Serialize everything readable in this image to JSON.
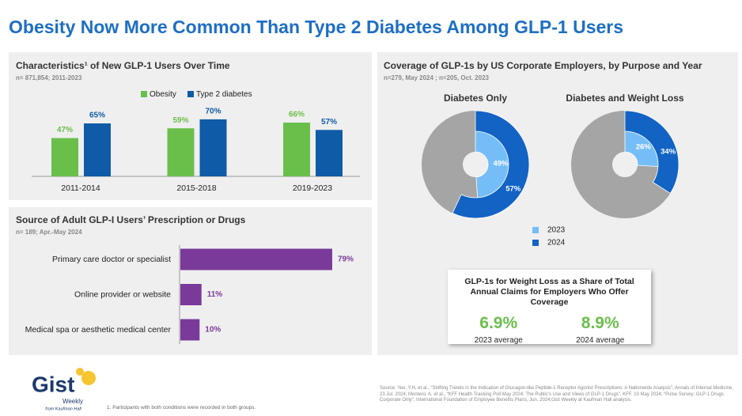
{
  "title": "Obesity Now More Common Than Type 2 Diabetes Among GLP-1 Users",
  "chart_data": [
    {
      "type": "bar",
      "title": "Characteristics¹ of New GLP-1 Users Over Time",
      "subtitle": "n= 871,854; 2011-2023",
      "categories": [
        "2011-2014",
        "2015-2018",
        "2019-2023"
      ],
      "series": [
        {
          "name": "Obesity",
          "color": "#6abf4b",
          "values": [
            47,
            59,
            66
          ],
          "value_labels": [
            "47%",
            "59%",
            "66%"
          ]
        },
        {
          "name": "Type 2 diabetes",
          "color": "#0f5ba7",
          "values": [
            65,
            70,
            57
          ],
          "value_labels": [
            "65%",
            "70%",
            "57%"
          ]
        }
      ]
    },
    {
      "type": "hbar",
      "title": "Source of Adult GLP-I Users’ Prescription or Drugs",
      "subtitle": "n= 189; Apr.-May 2024",
      "categories": [
        "Primary care doctor or specialist",
        "Online provider or website",
        "Medical spa or aesthetic medical center"
      ],
      "values": [
        79,
        11,
        10
      ],
      "value_labels": [
        "79%",
        "11%",
        "10%"
      ],
      "color": "#7a3a9a"
    },
    {
      "type": "donut",
      "title": "Coverage of GLP-1s by US Corporate Employers, by Purpose and Year",
      "subtitle": "n=279, May 2024 ; n=205, Oct. 2023",
      "categories": [
        "Diabetes Only",
        "Diabetes and Weight Loss"
      ],
      "series": [
        {
          "name": "2023",
          "color": "#75bdf7",
          "values": [
            49,
            26
          ],
          "value_labels": [
            "49%",
            "26%"
          ]
        },
        {
          "name": "2024",
          "color": "#1263c4",
          "values": [
            57,
            34
          ],
          "value_labels": [
            "57%",
            "34%"
          ]
        }
      ]
    }
  ],
  "callout": {
    "title": "GLP-1s for Weight Loss as a Share of Total Annual Claims for Employers Who Offer Coverage",
    "stats": [
      {
        "value": "6.9%",
        "label": "2023 average"
      },
      {
        "value": "8.9%",
        "label": "2024 average"
      }
    ]
  },
  "logo": {
    "name": "Gist",
    "line1": "Weekly",
    "line2": "from Kaufman Hall"
  },
  "footnote": "1. Participants with both conditions were recorded in both groups.",
  "source": "Source: Yeo, Y.H, et al., “Shifting Trends in the Indication of Glucagon-like Peptide-1 Receptor Agonist Prescriptions: A Nationwide Analysis”, Annals of Internal Medicine, 23 Jul. 2024; Montero, A. et al., “KFF Health Tracking Poll May 2024: The Public’s Use and Views of GLP-1 Drugs”, KFF, 10 May 2024; “Pulse Survey: GLP-1 Drugs Corporate Only”, International Foundation of Employee Benefits Plans, Jun. 2024;Gist Weekly at Kaufman Hall analysis."
}
